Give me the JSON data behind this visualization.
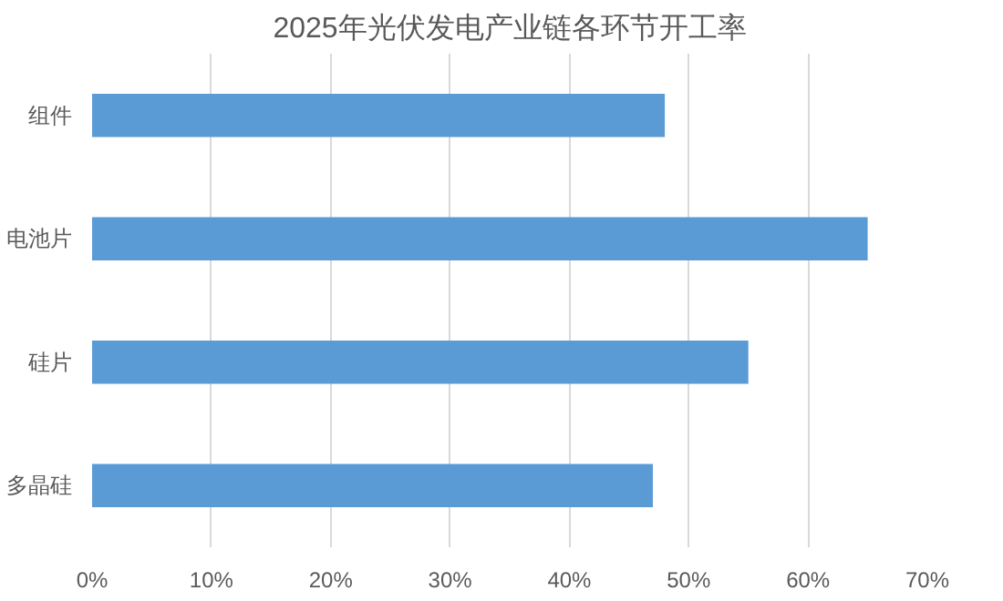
{
  "chart_data": {
    "type": "bar",
    "orientation": "horizontal",
    "title": "2025年光伏发电产业链各环节开工率",
    "categories": [
      "组件",
      "电池片",
      "硅片",
      "多晶硅"
    ],
    "values": [
      48,
      65,
      55,
      47
    ],
    "color": "#5b9bd5",
    "xlim": [
      0,
      70
    ],
    "xticks": [
      {
        "value": 0,
        "label": "0%"
      },
      {
        "value": 10,
        "label": "10%"
      },
      {
        "value": 20,
        "label": "20%"
      },
      {
        "value": 30,
        "label": "30%"
      },
      {
        "value": 40,
        "label": "40%"
      },
      {
        "value": 50,
        "label": "50%"
      },
      {
        "value": 60,
        "label": "60%"
      },
      {
        "value": 70,
        "label": "70%"
      }
    ],
    "grid": "x"
  }
}
